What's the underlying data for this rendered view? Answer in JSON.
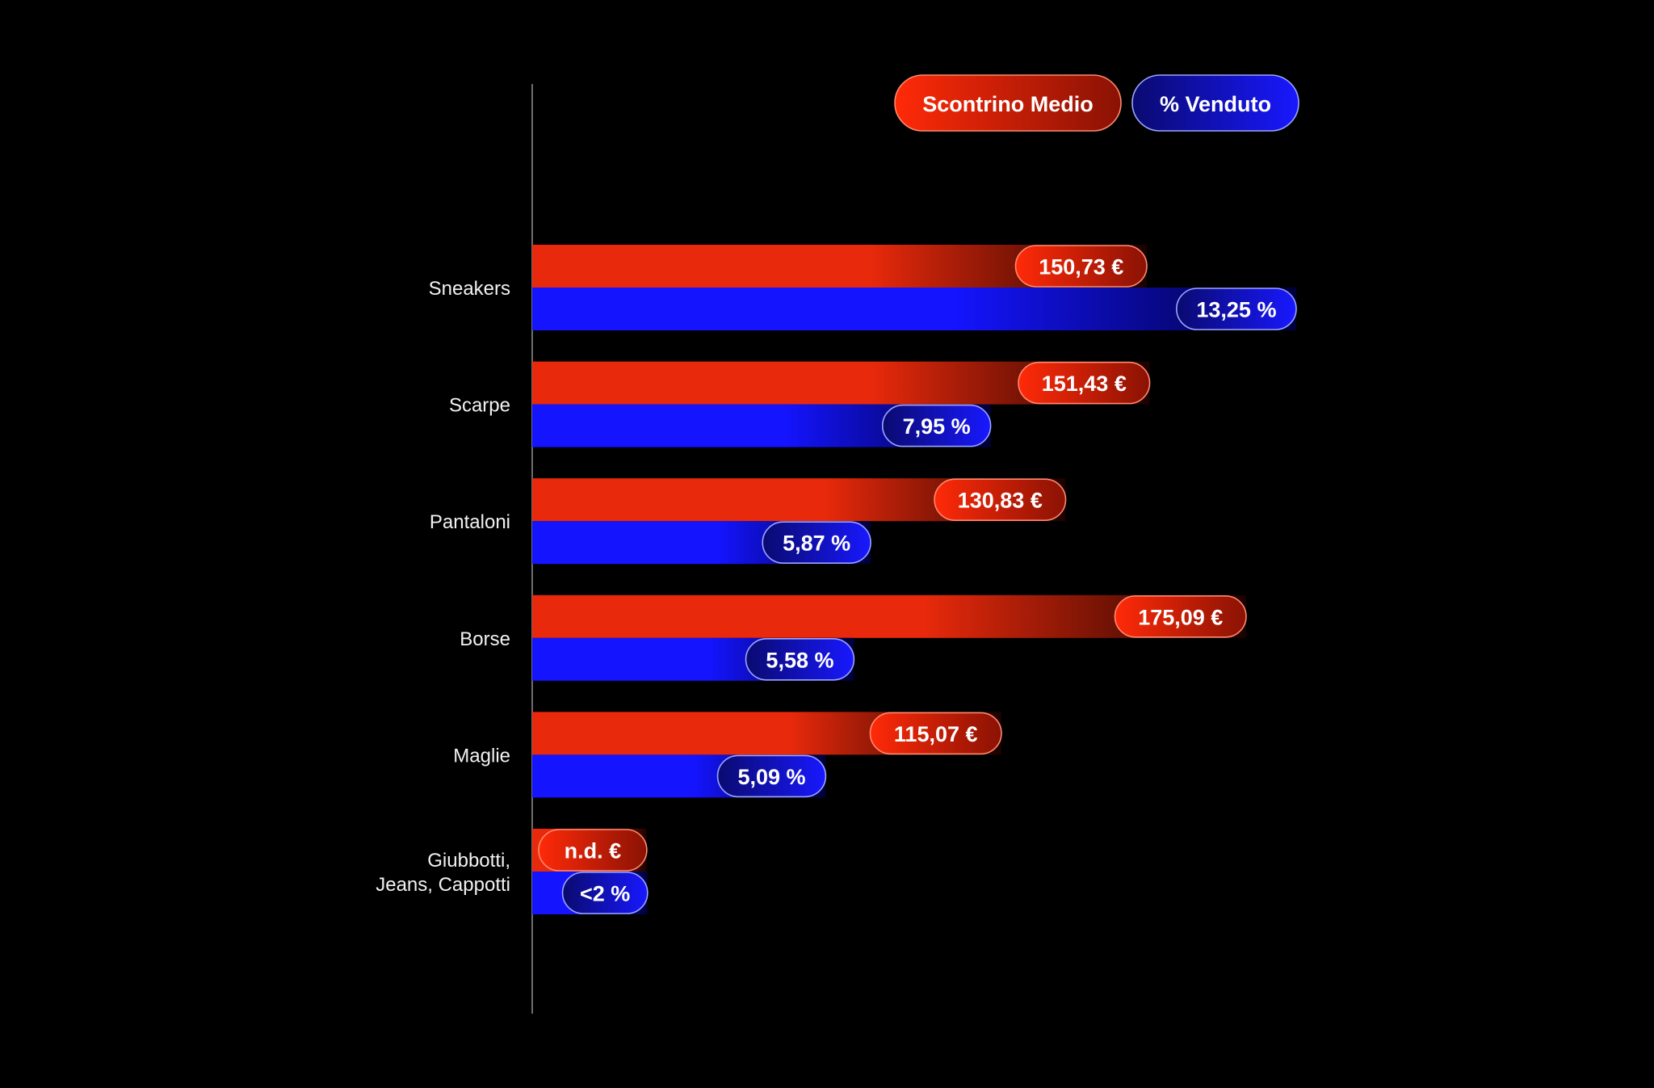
{
  "legend": {
    "placement": "top-right",
    "items": [
      {
        "key": "scontrino",
        "label": "Scontrino Medio",
        "color": "#e8290b"
      },
      {
        "key": "venduto",
        "label": "% Venduto",
        "color": "#1414ff"
      }
    ]
  },
  "chart_data": {
    "type": "bar",
    "orientation": "horizontal",
    "categories": [
      [
        "Sneakers"
      ],
      [
        "Scarpe"
      ],
      [
        "Pantaloni"
      ],
      [
        "Borse"
      ],
      [
        "Maglie"
      ],
      [
        "Giubbotti,",
        "Jeans, Cappotti"
      ]
    ],
    "series": [
      {
        "name": "Scontrino Medio",
        "color": "#e8290b",
        "values": [
          150.73,
          151.43,
          130.83,
          175.09,
          115.07,
          null
        ],
        "labels": [
          "150,73 €",
          "151,43 €",
          "130,83 €",
          "175,09 €",
          "115,07 €",
          "n.d. €"
        ]
      },
      {
        "name": "% Venduto",
        "color": "#1414ff",
        "values": [
          13.25,
          7.95,
          5.87,
          5.58,
          5.09,
          2
        ],
        "labels": [
          "13,25 %",
          "7,95 %",
          "5,87 %",
          "5,58 %",
          "5,09 %",
          "<2 %"
        ]
      }
    ],
    "grid": false
  }
}
